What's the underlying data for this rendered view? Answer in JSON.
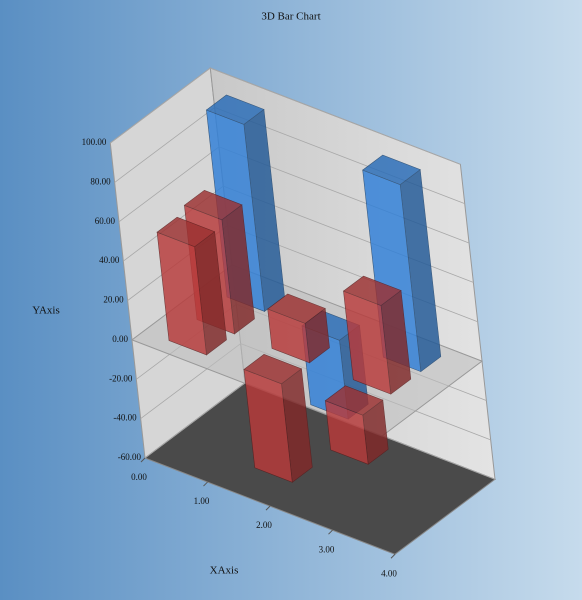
{
  "chart_data": {
    "type": "bar3d",
    "title": "3D Bar Chart",
    "x_label": "XAxis",
    "y_label": "YAxis",
    "x": [
      0.7,
      1.9,
      3.2
    ],
    "series": [
      {
        "color": "#2f7fd8",
        "depth": 0.8,
        "values": [
          95,
          -40,
          95
        ]
      },
      {
        "color": "#b83a3a",
        "depth": 0.5,
        "values": [
          58,
          20,
          45
        ]
      },
      {
        "color": "#b83a3a",
        "depth": 0.22,
        "values": [
          55,
          -50,
          -25
        ]
      }
    ],
    "xlim": [
      0,
      4
    ],
    "xticks": [
      {
        "value": 0,
        "label": "0.00"
      },
      {
        "value": 1,
        "label": "1.00"
      },
      {
        "value": 2,
        "label": "2.00"
      },
      {
        "value": 3,
        "label": "3.00"
      },
      {
        "value": 4,
        "label": "4.00"
      }
    ],
    "ylim": [
      -60,
      100
    ],
    "yticks": [
      {
        "value": -60,
        "label": "-60.00"
      },
      {
        "value": -40,
        "label": "-40.00"
      },
      {
        "value": -20,
        "label": "-20.00"
      },
      {
        "value": 0,
        "label": "0.00"
      },
      {
        "value": 20,
        "label": "20.00"
      },
      {
        "value": 40,
        "label": "40.00"
      },
      {
        "value": 60,
        "label": "60.00"
      },
      {
        "value": 80,
        "label": "80.00"
      },
      {
        "value": 100,
        "label": "100.00"
      }
    ],
    "grid": true
  }
}
